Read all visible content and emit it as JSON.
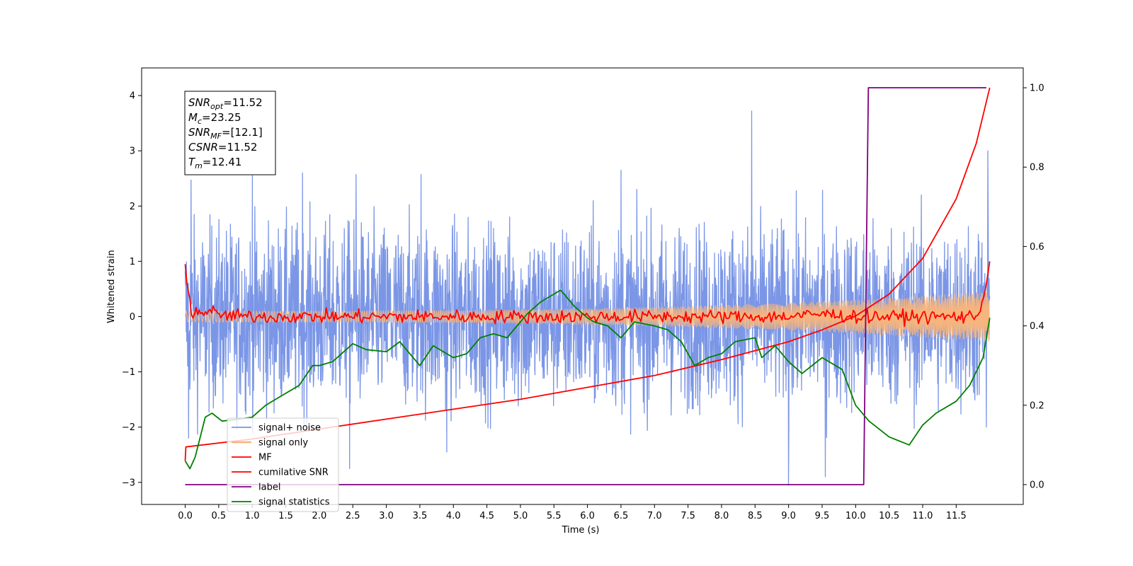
{
  "chart_data": {
    "type": "line",
    "title": "",
    "xlabel": "Time (s)",
    "ylabel": "Whitened strain",
    "y2label": "",
    "xlim": [
      -0.65,
      12.5
    ],
    "ylim": [
      -3.4,
      4.5
    ],
    "y2lim": [
      -0.05,
      1.05
    ],
    "x_ticks": [
      0.0,
      0.5,
      1.0,
      1.5,
      2.0,
      2.5,
      3.0,
      3.5,
      4.0,
      4.5,
      5.0,
      5.5,
      6.0,
      6.5,
      7.0,
      7.5,
      8.0,
      8.5,
      9.0,
      9.5,
      10.0,
      10.5,
      11.0,
      11.5
    ],
    "x_tick_labels": [
      "0.0",
      "0.5",
      "1.0",
      "1.5",
      "2.0",
      "2.5",
      "3.0",
      "3.5",
      "4.0",
      "4.5",
      "5.0",
      "5.5",
      "6.0",
      "6.5",
      "7.0",
      "7.5",
      "8.0",
      "8.5",
      "9.0",
      "9.5",
      "10.0",
      "10.5",
      "11.0",
      "11.5"
    ],
    "y_ticks": [
      -3,
      -2,
      -1,
      0,
      1,
      2,
      3,
      4
    ],
    "y_tick_labels": [
      "−3",
      "−2",
      "−1",
      "0",
      "1",
      "2",
      "3",
      "4"
    ],
    "y2_ticks": [
      0.0,
      0.2,
      0.4,
      0.6,
      0.8,
      1.0
    ],
    "y2_tick_labels": [
      "0.0",
      "0.2",
      "0.4",
      "0.6",
      "0.8",
      "1.0"
    ],
    "grid": false,
    "legend_position": "lower-left",
    "annotation_box": {
      "position": "top-left",
      "lines": [
        {
          "sym": "SNR",
          "sub": "opt",
          "val": "=11.52"
        },
        {
          "sym": "M",
          "sub": "c",
          "val": "=23.25"
        },
        {
          "sym": "SNR",
          "sub": "MF",
          "val": "=[12.1]"
        },
        {
          "sym": "CSNR",
          "sub": "",
          "val": "=11.52"
        },
        {
          "sym": "T",
          "sub": "m",
          "val": "=12.41"
        }
      ]
    },
    "series": [
      {
        "name": "signal+ noise",
        "axis": "left",
        "color": "#7b96e6",
        "kind": "noise",
        "x_range": [
          0.0,
          12.0
        ],
        "std": 0.82,
        "spikes": [
          {
            "x": 0.09,
            "y": 2.47
          },
          {
            "x": 1.0,
            "y": 2.55
          },
          {
            "x": 1.75,
            "y": 2.6
          },
          {
            "x": 2.55,
            "y": 2.57
          },
          {
            "x": 3.52,
            "y": 2.57
          },
          {
            "x": 6.5,
            "y": 2.65
          },
          {
            "x": 8.45,
            "y": 3.72
          },
          {
            "x": 11.97,
            "y": 3.0
          },
          {
            "x": 9.0,
            "y": -3.05
          },
          {
            "x": 9.55,
            "y": -2.9
          },
          {
            "x": 2.45,
            "y": -2.75
          },
          {
            "x": 0.05,
            "y": -2.2
          },
          {
            "x": 11.95,
            "y": -2.0
          },
          {
            "x": 3.9,
            "y": -2.45
          }
        ]
      },
      {
        "name": "signal only",
        "axis": "left",
        "color": "#f6b57d",
        "kind": "chirp",
        "x_range": [
          0.0,
          12.0
        ],
        "amp_start": 0.1,
        "amp_end": 0.45
      },
      {
        "name": "MF",
        "axis": "left",
        "color": "#ff0000",
        "kind": "jitter",
        "x": [
          0.0,
          0.1,
          0.3,
          0.6,
          1.0,
          2.0,
          3.0,
          4.0,
          5.0,
          6.0,
          7.0,
          8.0,
          9.0,
          9.5,
          10.0,
          10.5,
          11.0,
          11.5,
          11.8,
          11.9,
          12.0
        ],
        "y": [
          0.95,
          0.05,
          0.1,
          0.02,
          0.0,
          0.0,
          0.0,
          0.0,
          0.0,
          0.0,
          0.0,
          0.0,
          0.0,
          0.05,
          0.0,
          0.0,
          0.0,
          0.0,
          0.0,
          0.3,
          1.0
        ],
        "jitter": 0.06
      },
      {
        "name": "cumilative SNR",
        "axis": "right",
        "color": "#ff0000",
        "kind": "line",
        "x": [
          0.0,
          0.01,
          1.0,
          2.0,
          3.0,
          4.0,
          5.0,
          6.0,
          7.0,
          8.0,
          9.0,
          9.5,
          10.0,
          10.5,
          11.0,
          11.5,
          11.8,
          12.0
        ],
        "y": [
          0.06,
          0.095,
          0.115,
          0.14,
          0.165,
          0.19,
          0.215,
          0.245,
          0.275,
          0.315,
          0.36,
          0.39,
          0.425,
          0.48,
          0.57,
          0.72,
          0.86,
          1.0
        ]
      },
      {
        "name": "label",
        "axis": "right",
        "color": "#800080",
        "kind": "line",
        "x": [
          0.0,
          10.12,
          10.19,
          11.95
        ],
        "y": [
          0.0,
          0.0,
          1.0,
          1.0
        ]
      },
      {
        "name": "signal statistics",
        "axis": "right",
        "color": "#008000",
        "kind": "line",
        "x": [
          0.0,
          0.07,
          0.15,
          0.3,
          0.4,
          0.55,
          0.8,
          1.0,
          1.2,
          1.5,
          1.7,
          1.9,
          2.0,
          2.2,
          2.5,
          2.7,
          3.0,
          3.2,
          3.5,
          3.7,
          3.9,
          4.0,
          4.2,
          4.4,
          4.6,
          4.8,
          5.0,
          5.1,
          5.3,
          5.6,
          5.8,
          6.0,
          6.1,
          6.3,
          6.5,
          6.7,
          7.0,
          7.2,
          7.4,
          7.6,
          7.8,
          8.0,
          8.2,
          8.5,
          8.6,
          8.8,
          9.0,
          9.2,
          9.5,
          9.8,
          10.0,
          10.2,
          10.5,
          10.8,
          11.0,
          11.2,
          11.5,
          11.7,
          11.9,
          12.0
        ],
        "y": [
          0.06,
          0.04,
          0.07,
          0.17,
          0.18,
          0.16,
          0.165,
          0.17,
          0.2,
          0.23,
          0.25,
          0.3,
          0.3,
          0.31,
          0.355,
          0.34,
          0.335,
          0.36,
          0.3,
          0.35,
          0.33,
          0.32,
          0.33,
          0.37,
          0.38,
          0.37,
          0.41,
          0.43,
          0.46,
          0.49,
          0.45,
          0.42,
          0.41,
          0.4,
          0.37,
          0.41,
          0.4,
          0.39,
          0.36,
          0.3,
          0.32,
          0.33,
          0.36,
          0.37,
          0.32,
          0.35,
          0.31,
          0.28,
          0.32,
          0.29,
          0.2,
          0.16,
          0.12,
          0.1,
          0.15,
          0.18,
          0.21,
          0.25,
          0.32,
          0.42
        ]
      }
    ]
  }
}
